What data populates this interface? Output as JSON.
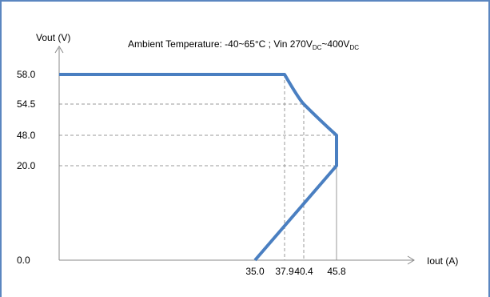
{
  "chart_data": {
    "type": "line",
    "title_parts": {
      "prefix": "Ambient Temperature: -40~65°C ; Vin 270V",
      "sub1": "DC",
      "mid": "~400V",
      "sub2": "DC"
    },
    "ylabel": "Vout (V)",
    "xlabel": "Iout (A)",
    "y_ticks": [
      {
        "label": "58.0",
        "v": 58.0
      },
      {
        "label": "54.5",
        "v": 54.5
      },
      {
        "label": "48.0",
        "v": 48.0
      },
      {
        "label": "20.0",
        "v": 20.0
      },
      {
        "label": "0.0",
        "v": 0.0
      }
    ],
    "x_ticks": [
      {
        "label": "35.0",
        "v": 35.0
      },
      {
        "label": "37.9",
        "v": 37.9
      },
      {
        "label": "40.4",
        "v": 40.4
      },
      {
        "label": "45.8",
        "v": 45.8
      }
    ],
    "series": [
      {
        "color": "#4a7fc1",
        "points": [
          [
            0,
            58.0
          ],
          [
            37.9,
            58.0
          ],
          [
            40.4,
            54.5
          ],
          [
            45.8,
            48.0
          ],
          [
            45.8,
            20.0
          ],
          [
            35.0,
            0.0
          ]
        ]
      }
    ],
    "guides": [
      {
        "x": 37.9,
        "y": 58.0
      },
      {
        "x": 40.4,
        "y": 54.5
      },
      {
        "x": 45.8,
        "y": 48.0
      },
      {
        "x": 45.8,
        "y": 20.0
      }
    ],
    "grid_color": "#999999",
    "axis_color": "#888888"
  }
}
